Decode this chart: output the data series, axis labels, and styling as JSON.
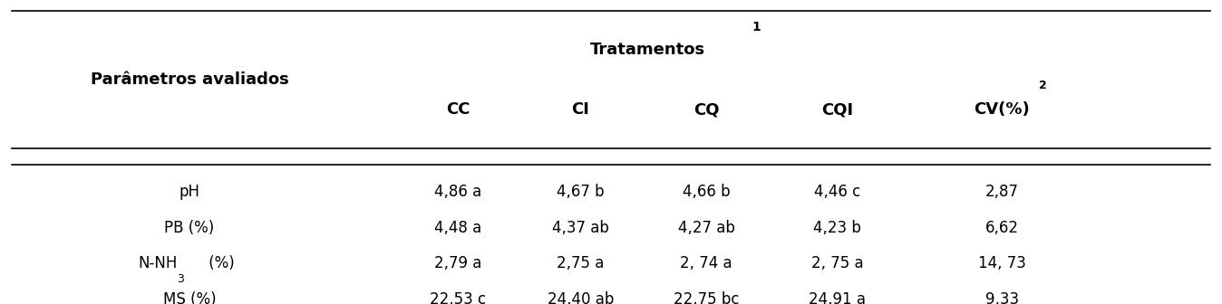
{
  "title": "Tratamentos",
  "title_sup": "1",
  "col_header_left": "Parâmetros avaliados",
  "col_headers": [
    "CC",
    "CI",
    "CQ",
    "CQI",
    "CV(%)"
  ],
  "col_sup": [
    "",
    "",
    "",
    "",
    "2"
  ],
  "rows": [
    {
      "param": "pH",
      "param_type": "normal",
      "cc": "4,86 a",
      "ci": "4,67 b",
      "cq": "4,66 b",
      "cqi": "4,46 c",
      "cv": "2,87"
    },
    {
      "param": "PB (%)",
      "param_type": "normal",
      "cc": "4,48 a",
      "ci": "4,37 ab",
      "cq": "4,27 ab",
      "cqi": "4,23 b",
      "cv": "6,62"
    },
    {
      "param": "N-NH",
      "param_type": "nh3",
      "cc": "2,79 a",
      "ci": "2,75 a",
      "cq": "2, 74 a",
      "cqi": "2, 75 a",
      "cv": "14, 73"
    },
    {
      "param": "MS (%)",
      "param_type": "normal",
      "cc": "22,53 c",
      "ci": "24,40 ab",
      "cq": "22,75 bc",
      "cqi": "24,91 a",
      "cv": "9,33"
    }
  ],
  "background_color": "#ffffff",
  "text_color": "#000000",
  "line_color": "#000000",
  "data_font_size": 12,
  "header_font_size": 13,
  "title_font_size": 13
}
